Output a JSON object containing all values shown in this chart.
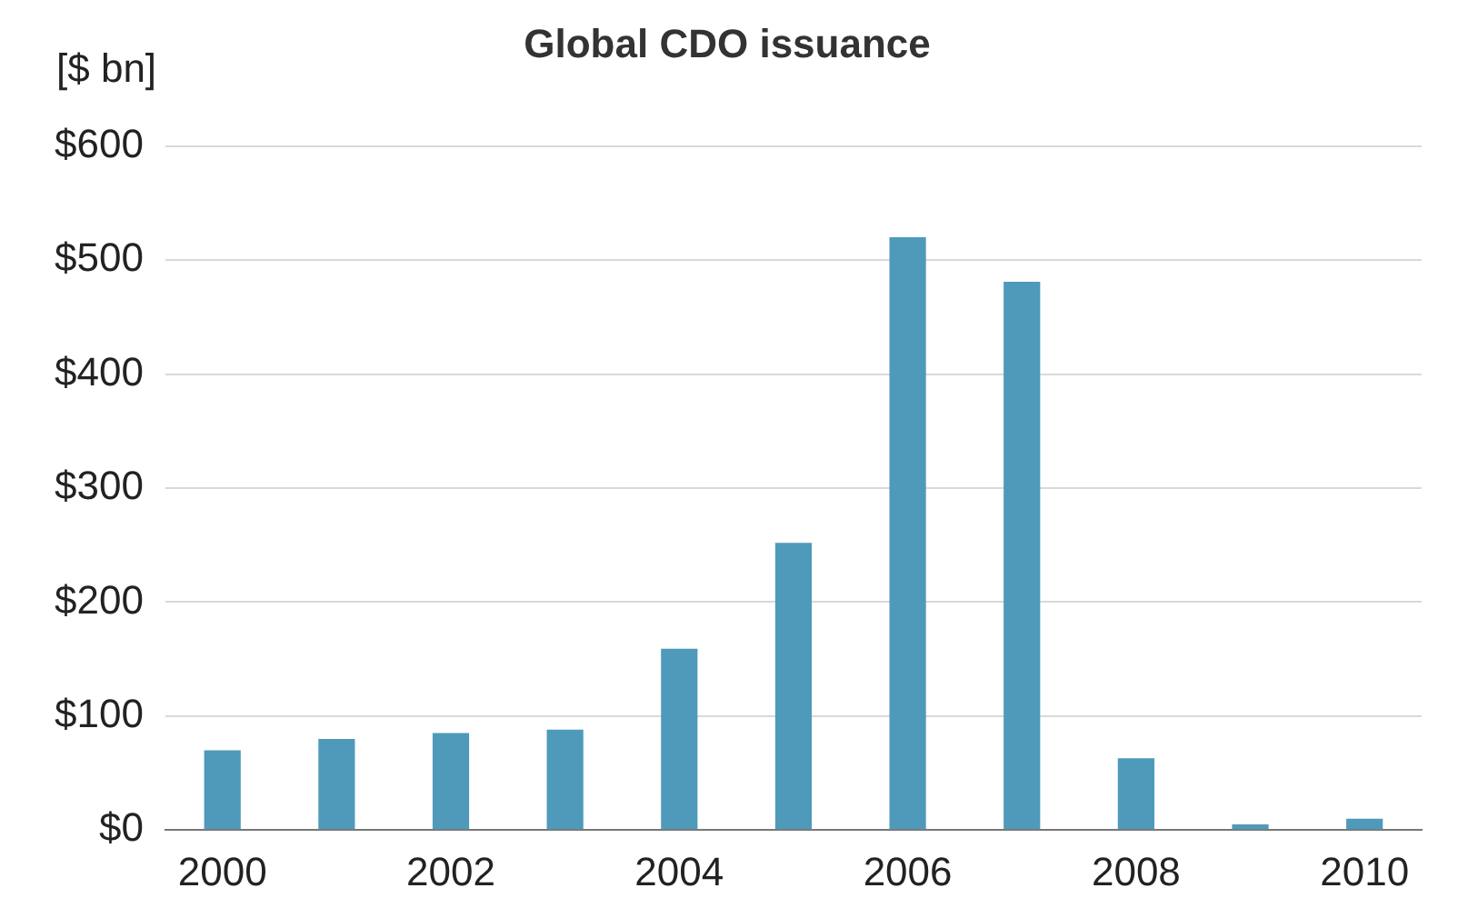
{
  "chart_data": {
    "type": "bar",
    "title": "Global CDO issuance",
    "ylabel": "[$ bn]",
    "categories": [
      "2000",
      null,
      "2002",
      null,
      "2004",
      null,
      "2006",
      null,
      "2008",
      null,
      "2010"
    ],
    "values": [
      70,
      80,
      85,
      88,
      159,
      252,
      520,
      481,
      63,
      5,
      10
    ],
    "color": "#4f9aba",
    "ylim": [
      0,
      600
    ],
    "yticks": [
      {
        "value": 0,
        "label": "$0"
      },
      {
        "value": 100,
        "label": "$100"
      },
      {
        "value": 200,
        "label": "$200"
      },
      {
        "value": 300,
        "label": "$300"
      },
      {
        "value": 400,
        "label": "$400"
      },
      {
        "value": 500,
        "label": "$500"
      },
      {
        "value": 600,
        "label": "$600"
      }
    ],
    "grid": "y",
    "legend": false
  }
}
